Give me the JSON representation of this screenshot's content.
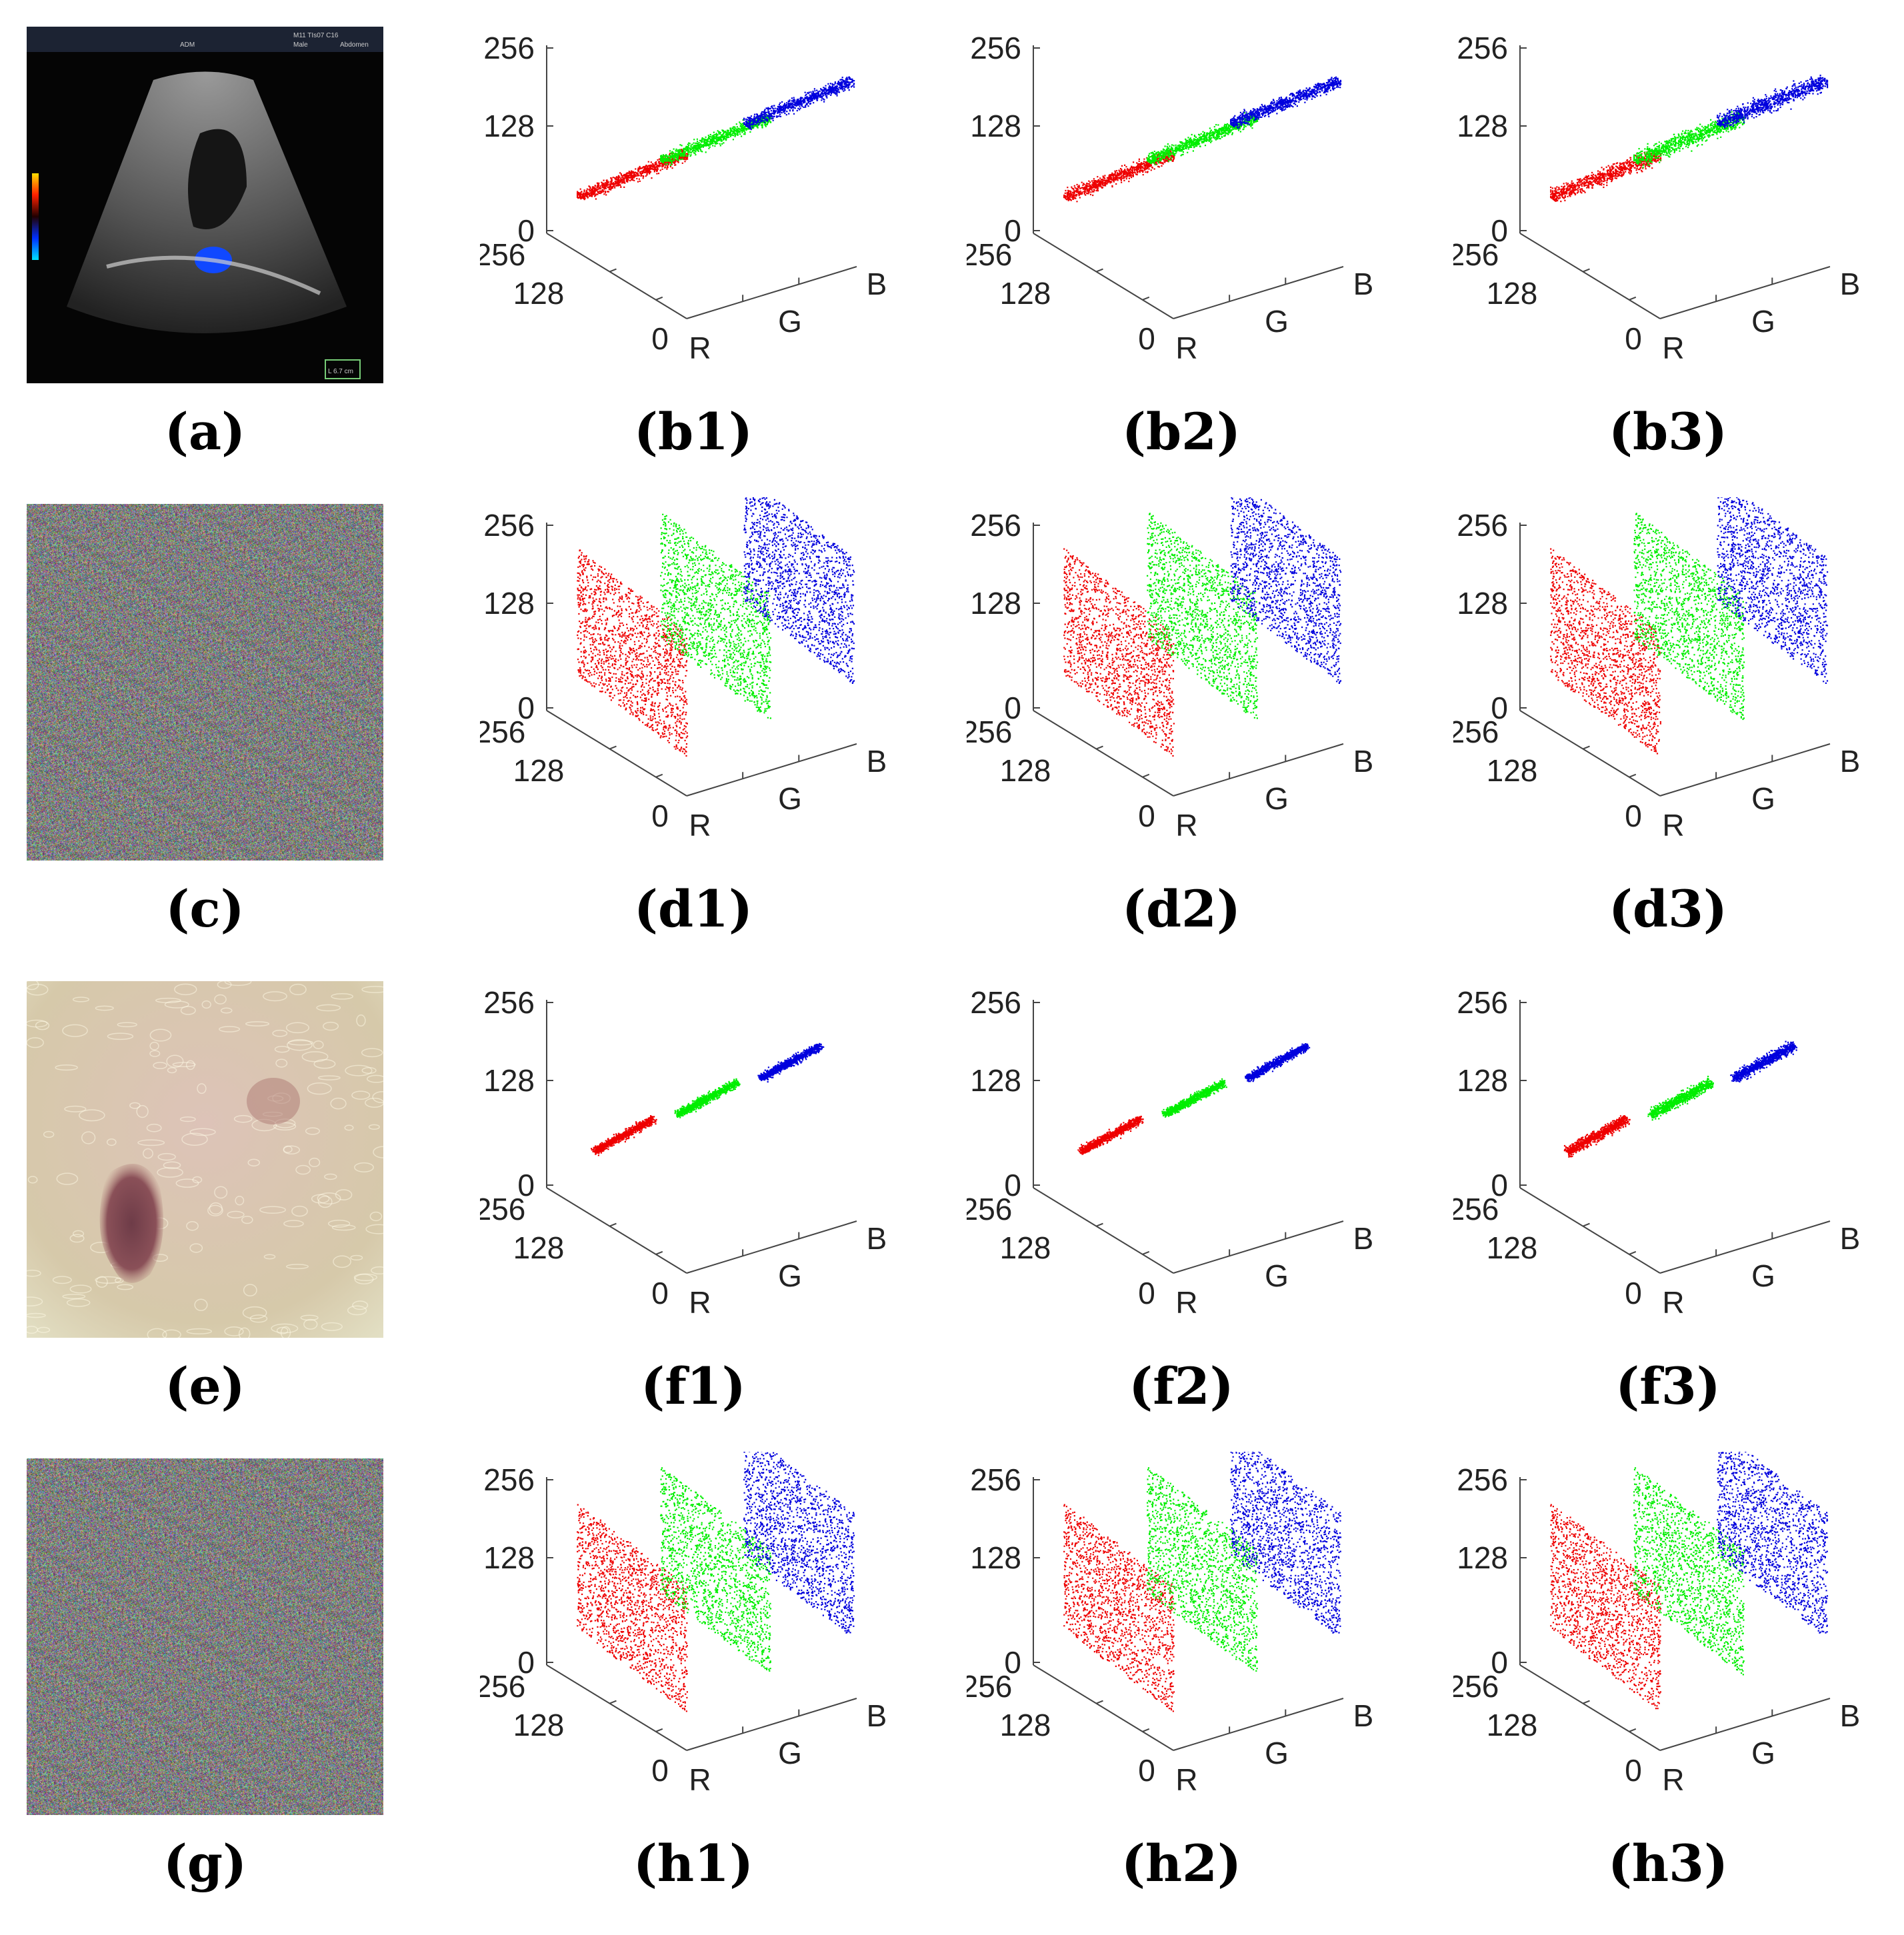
{
  "figure": {
    "rows": [
      {
        "image": {
          "caption": "(a)",
          "kind": "ultrasound",
          "overlay_text": [
            "M11 TIs07 C16",
            "ADM",
            "Male",
            "Abdomen",
            "L 6.7 cm"
          ]
        },
        "plots": [
          {
            "caption": "(b1)",
            "distribution": "correlated",
            "spread": 0.06
          },
          {
            "caption": "(b2)",
            "distribution": "correlated",
            "spread": 0.06
          },
          {
            "caption": "(b3)",
            "distribution": "correlated",
            "spread": 0.08
          }
        ]
      },
      {
        "image": {
          "caption": "(c)",
          "kind": "noise"
        },
        "plots": [
          {
            "caption": "(d1)",
            "distribution": "uniform"
          },
          {
            "caption": "(d2)",
            "distribution": "uniform"
          },
          {
            "caption": "(d3)",
            "distribution": "uniform"
          }
        ]
      },
      {
        "image": {
          "caption": "(e)",
          "kind": "skin"
        },
        "plots": [
          {
            "caption": "(f1)",
            "distribution": "narrow",
            "spread": 0.04
          },
          {
            "caption": "(f2)",
            "distribution": "narrow",
            "spread": 0.04
          },
          {
            "caption": "(f3)",
            "distribution": "narrow",
            "spread": 0.05
          }
        ]
      },
      {
        "image": {
          "caption": "(g)",
          "kind": "noise"
        },
        "plots": [
          {
            "caption": "(h1)",
            "distribution": "uniform"
          },
          {
            "caption": "(h2)",
            "distribution": "uniform"
          },
          {
            "caption": "(h3)",
            "distribution": "uniform"
          }
        ]
      }
    ],
    "axis_labels": {
      "z_ticks": [
        "256",
        "128",
        "0"
      ],
      "depth_ticks": [
        "256",
        "128",
        "0"
      ],
      "channels": [
        "R",
        "G",
        "B"
      ]
    },
    "colors": {
      "R": "#ee0000",
      "G": "#00ee00",
      "B": "#0000dd"
    }
  },
  "chart_data": {
    "type": "scatter",
    "title": "",
    "z_axis": {
      "ticks": [
        0,
        128,
        256
      ],
      "range": [
        0,
        256
      ]
    },
    "depth_axis": {
      "ticks": [
        0,
        128,
        256
      ],
      "range": [
        0,
        256
      ]
    },
    "channels": [
      "R",
      "G",
      "B"
    ],
    "note_panels": [
      "b1",
      "b2",
      "b3",
      "d1",
      "d2",
      "d3",
      "f1",
      "f2",
      "f3",
      "h1",
      "h2",
      "h3"
    ]
  }
}
